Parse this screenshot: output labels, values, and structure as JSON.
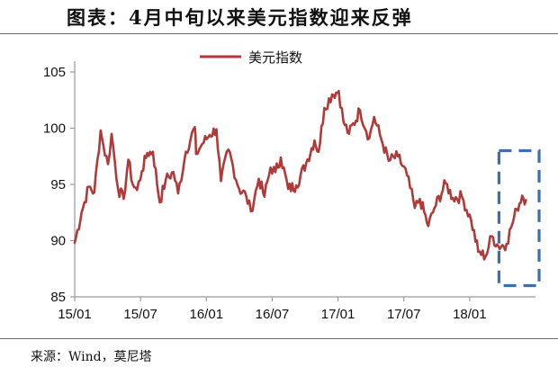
{
  "title": "图表：4月中旬以来美元指数迎来反弹",
  "source_note": "来源：Wind，莫尼塔",
  "colors": {
    "series": "#b03a3a",
    "highlight_box": "#3f6fab",
    "axis": "#9a9a9a"
  },
  "chart_data": {
    "type": "line",
    "series_name": "美元指数",
    "legend_position": "top-center",
    "grid": false,
    "ylim": [
      85,
      105
    ],
    "y_ticks": [
      "85",
      "90",
      "95",
      "100",
      "105"
    ],
    "x_tick_labels": [
      "15/01",
      "15/07",
      "16/01",
      "16/07",
      "17/01",
      "17/07",
      "18/01"
    ],
    "x_range": [
      "2015-01",
      "2018-06"
    ],
    "highlight": {
      "from": "2018-04",
      "to": "2018-06",
      "ylim": [
        86,
        98
      ]
    },
    "points": [
      [
        "2015-01-01",
        89.8
      ],
      [
        "2015-01-20",
        92.5
      ],
      [
        "2015-02-10",
        94.8
      ],
      [
        "2015-02-25",
        94.3
      ],
      [
        "2015-03-12",
        99.8
      ],
      [
        "2015-03-20",
        98.4
      ],
      [
        "2015-04-02",
        96.8
      ],
      [
        "2015-04-12",
        99.5
      ],
      [
        "2015-04-30",
        94.6
      ],
      [
        "2015-05-15",
        93.7
      ],
      [
        "2015-05-28",
        97.2
      ],
      [
        "2015-06-10",
        95.0
      ],
      [
        "2015-06-22",
        94.5
      ],
      [
        "2015-07-05",
        96.2
      ],
      [
        "2015-07-20",
        97.8
      ],
      [
        "2015-08-05",
        97.9
      ],
      [
        "2015-08-24",
        93.4
      ],
      [
        "2015-09-10",
        95.4
      ],
      [
        "2015-10-01",
        96.1
      ],
      [
        "2015-10-14",
        94.2
      ],
      [
        "2015-11-05",
        97.9
      ],
      [
        "2015-11-30",
        100.1
      ],
      [
        "2015-12-03",
        97.7
      ],
      [
        "2015-12-20",
        98.6
      ],
      [
        "2016-01-10",
        99.4
      ],
      [
        "2016-01-29",
        99.9
      ],
      [
        "2016-02-11",
        95.3
      ],
      [
        "2016-03-01",
        98.1
      ],
      [
        "2016-03-31",
        94.6
      ],
      [
        "2016-04-20",
        94.0
      ],
      [
        "2016-05-03",
        92.6
      ],
      [
        "2016-05-25",
        95.5
      ],
      [
        "2016-06-10",
        93.9
      ],
      [
        "2016-06-27",
        96.5
      ],
      [
        "2016-07-10",
        96.1
      ],
      [
        "2016-07-25",
        97.4
      ],
      [
        "2016-08-15",
        94.6
      ],
      [
        "2016-09-07",
        94.9
      ],
      [
        "2016-10-04",
        96.9
      ],
      [
        "2016-10-27",
        98.9
      ],
      [
        "2016-11-08",
        97.9
      ],
      [
        "2016-11-24",
        101.8
      ],
      [
        "2016-12-15",
        103.0
      ],
      [
        "2017-01-03",
        103.3
      ],
      [
        "2017-01-16",
        100.6
      ],
      [
        "2017-02-01",
        99.5
      ],
      [
        "2017-03-01",
        101.6
      ],
      [
        "2017-03-27",
        99.1
      ],
      [
        "2017-04-10",
        101.0
      ],
      [
        "2017-04-30",
        99.0
      ],
      [
        "2017-05-20",
        97.1
      ],
      [
        "2017-06-15",
        97.5
      ],
      [
        "2017-07-10",
        95.8
      ],
      [
        "2017-08-01",
        92.9
      ],
      [
        "2017-08-15",
        93.7
      ],
      [
        "2017-09-08",
        91.3
      ],
      [
        "2017-09-25",
        92.9
      ],
      [
        "2017-10-26",
        95.1
      ],
      [
        "2017-11-15",
        93.8
      ],
      [
        "2017-12-10",
        93.9
      ],
      [
        "2018-01-05",
        91.8
      ],
      [
        "2018-01-25",
        89.0
      ],
      [
        "2018-02-15",
        88.6
      ],
      [
        "2018-03-01",
        90.4
      ],
      [
        "2018-03-20",
        89.5
      ],
      [
        "2018-04-12",
        89.7
      ],
      [
        "2018-04-25",
        91.2
      ],
      [
        "2018-05-10",
        92.8
      ],
      [
        "2018-05-25",
        94.0
      ],
      [
        "2018-06-05",
        93.6
      ]
    ]
  }
}
